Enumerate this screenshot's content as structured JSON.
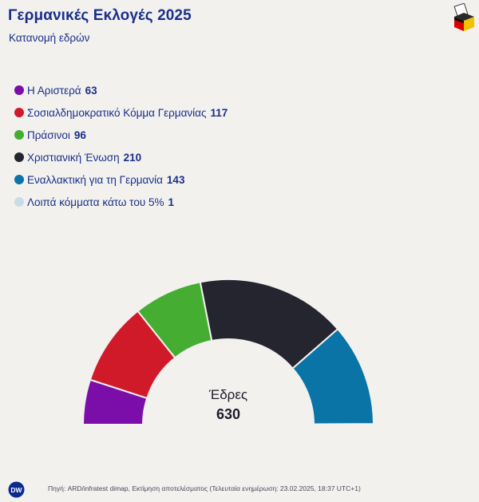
{
  "header": {
    "title": "Γερμανικές Εκλογές 2025",
    "subtitle": "Κατανομή εδρών"
  },
  "chart_data": {
    "type": "pie",
    "variant": "half-donut parliament",
    "title": "Γερμανικές Εκλογές 2025",
    "subtitle": "Κατανομή εδρών",
    "series": [
      {
        "name": "Η Αριστερά",
        "value": 63,
        "color": "#7b0da8"
      },
      {
        "name": "Σοσιαλδημοκρατικό Κόμμα Γερμανίας",
        "value": 117,
        "color": "#d01a2a"
      },
      {
        "name": "Πράσινοι",
        "value": 96,
        "color": "#45ad32"
      },
      {
        "name": "Χριστιανική Ένωση",
        "value": 210,
        "color": "#24252f"
      },
      {
        "name": "Εναλλακτική για τη Γερμανία",
        "value": 143,
        "color": "#0a74a6"
      },
      {
        "name": "Λοιπά κόμματα κάτω του 5%",
        "value": 1,
        "color": "#c9dbe6"
      }
    ],
    "total_label": "Έδρες",
    "total": "630",
    "legend_placement": "top-left"
  },
  "footer": {
    "source": "Πηγή: ARD/infratest dimap, Εκτίμηση αποτελέσματος (Τελευταία ενημέρωση: 23.02.2025, 18:37 UTC+1)",
    "logo_text": "DW"
  }
}
